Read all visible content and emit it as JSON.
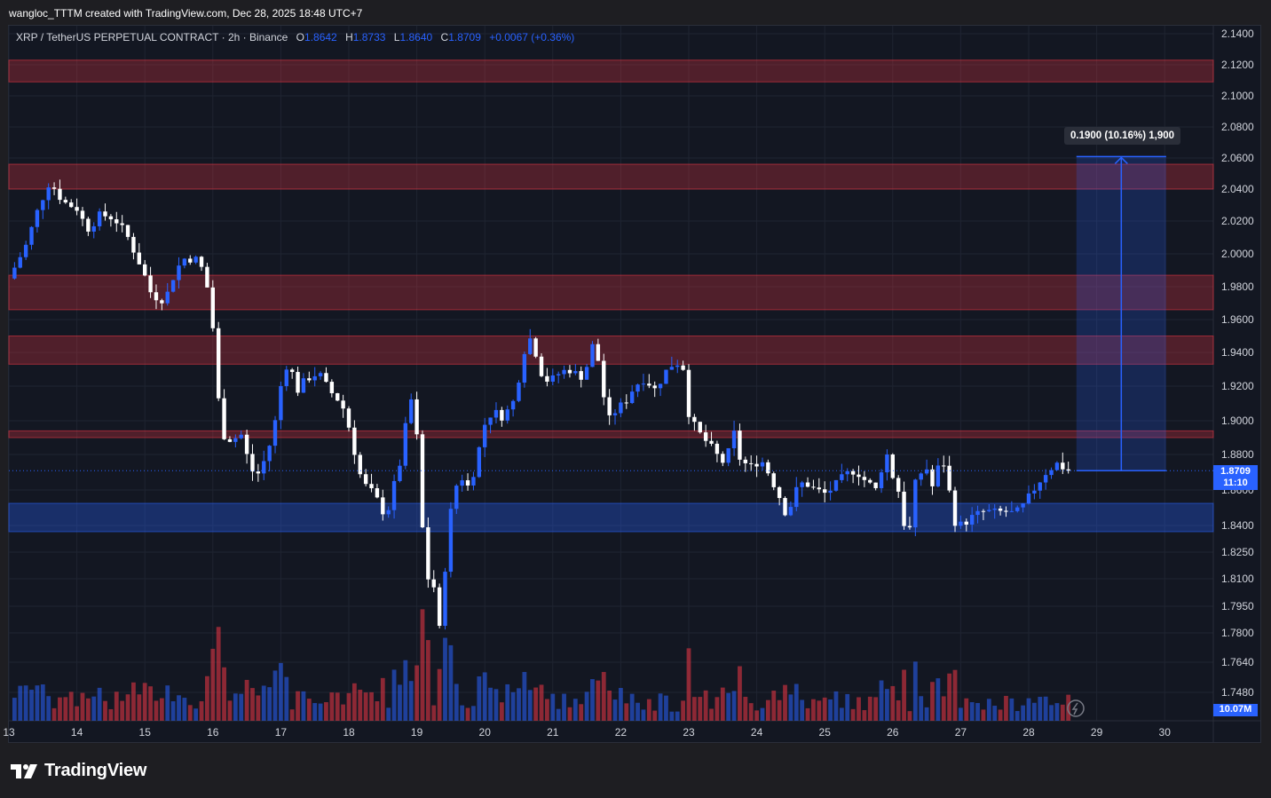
{
  "header": {
    "creator_text": "wangloc_TTTM created with TradingView.com, Dec 28, 2025 18:48 UTC+7"
  },
  "legend": {
    "symbol": "XRP / TetherUS PERPETUAL CONTRACT · 2h · Binance",
    "open_label": "O",
    "open": "1.8642",
    "high_label": "H",
    "high": "1.8733",
    "low_label": "L",
    "low": "1.8640",
    "close_label": "C",
    "close": "1.8709",
    "change": "+0.0067 (+0.36%)"
  },
  "price_axis": {
    "ticks": [
      "2.1400",
      "2.1200",
      "2.1000",
      "2.0800",
      "2.0600",
      "2.0400",
      "2.0200",
      "2.0000",
      "1.9800",
      "1.9600",
      "1.9400",
      "1.9200",
      "1.9000",
      "1.8800",
      "1.8600",
      "1.8400",
      "1.8250",
      "1.8100",
      "1.7950",
      "1.7800",
      "1.7640",
      "1.7480"
    ],
    "current_price": "1.8709",
    "countdown": "11:10",
    "volume_label": "10.07M"
  },
  "time_axis": {
    "ticks": [
      "13",
      "14",
      "15",
      "16",
      "17",
      "18",
      "19",
      "20",
      "21",
      "22",
      "23",
      "24",
      "25",
      "26",
      "27",
      "28",
      "29",
      "30"
    ]
  },
  "measure_tool": {
    "label": "0.1900 (10.16%) 1,900"
  },
  "footer": {
    "brand": "TradingView"
  },
  "colors": {
    "background": "#131722",
    "up": "#2962ff",
    "down": "#ffffff",
    "vol_up": "#2962ff",
    "vol_down": "#f23645",
    "resistance": "#f23645",
    "support": "#2962ff"
  },
  "chart_data": {
    "type": "candlestick",
    "timeframe": "2h",
    "x_range": [
      "13",
      "30"
    ],
    "y_range": [
      1.735,
      2.145
    ],
    "zones": [
      {
        "kind": "resistance",
        "low": 2.109,
        "high": 2.123
      },
      {
        "kind": "resistance",
        "low": 2.04,
        "high": 2.056
      },
      {
        "kind": "resistance",
        "low": 1.966,
        "high": 1.987
      },
      {
        "kind": "resistance",
        "low": 1.933,
        "high": 1.95
      },
      {
        "kind": "resistance",
        "low": 1.89,
        "high": 1.894
      },
      {
        "kind": "support",
        "low": 1.8365,
        "high": 1.8525
      }
    ],
    "measure": {
      "from_price": 1.8709,
      "to_price": 2.0609,
      "from_day": 28.65,
      "to_day": 30.1,
      "label_text": "0.1900 (10.16%) 1,900"
    },
    "last_close": 1.8709,
    "price_path": [
      {
        "d": 13.0,
        "p": 1.985
      },
      {
        "d": 13.25,
        "p": 2.005
      },
      {
        "d": 13.45,
        "p": 2.03
      },
      {
        "d": 13.6,
        "p": 2.045
      },
      {
        "d": 13.8,
        "p": 2.032
      },
      {
        "d": 14.0,
        "p": 2.028
      },
      {
        "d": 14.15,
        "p": 2.015
      },
      {
        "d": 14.35,
        "p": 2.024
      },
      {
        "d": 14.55,
        "p": 2.022
      },
      {
        "d": 14.75,
        "p": 2.01
      },
      {
        "d": 14.95,
        "p": 1.992
      },
      {
        "d": 15.1,
        "p": 1.975
      },
      {
        "d": 15.3,
        "p": 1.972
      },
      {
        "d": 15.45,
        "p": 1.99
      },
      {
        "d": 15.6,
        "p": 1.998
      },
      {
        "d": 15.8,
        "p": 1.996
      },
      {
        "d": 15.95,
        "p": 1.975
      },
      {
        "d": 16.0,
        "p": 1.955
      },
      {
        "d": 16.05,
        "p": 1.925
      },
      {
        "d": 16.1,
        "p": 1.905
      },
      {
        "d": 16.15,
        "p": 1.892
      },
      {
        "d": 16.3,
        "p": 1.888
      },
      {
        "d": 16.4,
        "p": 1.894
      },
      {
        "d": 16.55,
        "p": 1.872
      },
      {
        "d": 16.65,
        "p": 1.868
      },
      {
        "d": 16.8,
        "p": 1.88
      },
      {
        "d": 16.95,
        "p": 1.905
      },
      {
        "d": 17.0,
        "p": 1.92
      },
      {
        "d": 17.1,
        "p": 1.935
      },
      {
        "d": 17.25,
        "p": 1.918
      },
      {
        "d": 17.4,
        "p": 1.925
      },
      {
        "d": 17.55,
        "p": 1.928
      },
      {
        "d": 17.7,
        "p": 1.918
      },
      {
        "d": 17.85,
        "p": 1.912
      },
      {
        "d": 17.95,
        "p": 1.905
      },
      {
        "d": 18.05,
        "p": 1.888
      },
      {
        "d": 18.15,
        "p": 1.87
      },
      {
        "d": 18.25,
        "p": 1.862
      },
      {
        "d": 18.35,
        "p": 1.858
      },
      {
        "d": 18.45,
        "p": 1.852
      },
      {
        "d": 18.55,
        "p": 1.845
      },
      {
        "d": 18.65,
        "p": 1.86
      },
      {
        "d": 18.75,
        "p": 1.875
      },
      {
        "d": 18.85,
        "p": 1.9
      },
      {
        "d": 18.95,
        "p": 1.918
      },
      {
        "d": 19.0,
        "p": 1.89
      },
      {
        "d": 19.05,
        "p": 1.855
      },
      {
        "d": 19.1,
        "p": 1.83
      },
      {
        "d": 19.15,
        "p": 1.808
      },
      {
        "d": 19.22,
        "p": 1.818
      },
      {
        "d": 19.3,
        "p": 1.785
      },
      {
        "d": 19.35,
        "p": 1.78
      },
      {
        "d": 19.45,
        "p": 1.835
      },
      {
        "d": 19.55,
        "p": 1.86
      },
      {
        "d": 19.65,
        "p": 1.868
      },
      {
        "d": 19.75,
        "p": 1.862
      },
      {
        "d": 19.85,
        "p": 1.872
      },
      {
        "d": 20.0,
        "p": 1.898
      },
      {
        "d": 20.1,
        "p": 1.905
      },
      {
        "d": 20.25,
        "p": 1.903
      },
      {
        "d": 20.4,
        "p": 1.908
      },
      {
        "d": 20.5,
        "p": 1.925
      },
      {
        "d": 20.6,
        "p": 1.945
      },
      {
        "d": 20.7,
        "p": 1.95
      },
      {
        "d": 20.8,
        "p": 1.93
      },
      {
        "d": 20.95,
        "p": 1.922
      },
      {
        "d": 21.1,
        "p": 1.928
      },
      {
        "d": 21.25,
        "p": 1.93
      },
      {
        "d": 21.4,
        "p": 1.925
      },
      {
        "d": 21.5,
        "p": 1.932
      },
      {
        "d": 21.6,
        "p": 1.946
      },
      {
        "d": 21.7,
        "p": 1.93
      },
      {
        "d": 21.8,
        "p": 1.898
      },
      {
        "d": 21.9,
        "p": 1.905
      },
      {
        "d": 22.05,
        "p": 1.91
      },
      {
        "d": 22.2,
        "p": 1.92
      },
      {
        "d": 22.35,
        "p": 1.925
      },
      {
        "d": 22.5,
        "p": 1.918
      },
      {
        "d": 22.65,
        "p": 1.928
      },
      {
        "d": 22.8,
        "p": 1.935
      },
      {
        "d": 22.95,
        "p": 1.93
      },
      {
        "d": 23.0,
        "p": 1.905
      },
      {
        "d": 23.1,
        "p": 1.895
      },
      {
        "d": 23.25,
        "p": 1.888
      },
      {
        "d": 23.4,
        "p": 1.88
      },
      {
        "d": 23.55,
        "p": 1.874
      },
      {
        "d": 23.65,
        "p": 1.895
      },
      {
        "d": 23.75,
        "p": 1.878
      },
      {
        "d": 23.9,
        "p": 1.872
      },
      {
        "d": 24.05,
        "p": 1.878
      },
      {
        "d": 24.2,
        "p": 1.868
      },
      {
        "d": 24.35,
        "p": 1.855
      },
      {
        "d": 24.45,
        "p": 1.845
      },
      {
        "d": 24.55,
        "p": 1.858
      },
      {
        "d": 24.7,
        "p": 1.865
      },
      {
        "d": 24.85,
        "p": 1.86
      },
      {
        "d": 25.0,
        "p": 1.858
      },
      {
        "d": 25.15,
        "p": 1.862
      },
      {
        "d": 25.3,
        "p": 1.868
      },
      {
        "d": 25.45,
        "p": 1.872
      },
      {
        "d": 25.6,
        "p": 1.865
      },
      {
        "d": 25.75,
        "p": 1.86
      },
      {
        "d": 25.9,
        "p": 1.882
      },
      {
        "d": 26.0,
        "p": 1.868
      },
      {
        "d": 26.1,
        "p": 1.858
      },
      {
        "d": 26.15,
        "p": 1.842
      },
      {
        "d": 26.25,
        "p": 1.838
      },
      {
        "d": 26.35,
        "p": 1.868
      },
      {
        "d": 26.5,
        "p": 1.872
      },
      {
        "d": 26.6,
        "p": 1.86
      },
      {
        "d": 26.7,
        "p": 1.878
      },
      {
        "d": 26.8,
        "p": 1.872
      },
      {
        "d": 26.85,
        "p": 1.852
      },
      {
        "d": 26.95,
        "p": 1.838
      },
      {
        "d": 27.05,
        "p": 1.842
      },
      {
        "d": 27.2,
        "p": 1.845
      },
      {
        "d": 27.35,
        "p": 1.848
      },
      {
        "d": 27.5,
        "p": 1.847
      },
      {
        "d": 27.65,
        "p": 1.848
      },
      {
        "d": 27.8,
        "p": 1.846
      },
      {
        "d": 27.95,
        "p": 1.852
      },
      {
        "d": 28.1,
        "p": 1.862
      },
      {
        "d": 28.25,
        "p": 1.87
      },
      {
        "d": 28.4,
        "p": 1.875
      },
      {
        "d": 28.55,
        "p": 1.872
      },
      {
        "d": 28.65,
        "p": 1.8709
      }
    ]
  }
}
